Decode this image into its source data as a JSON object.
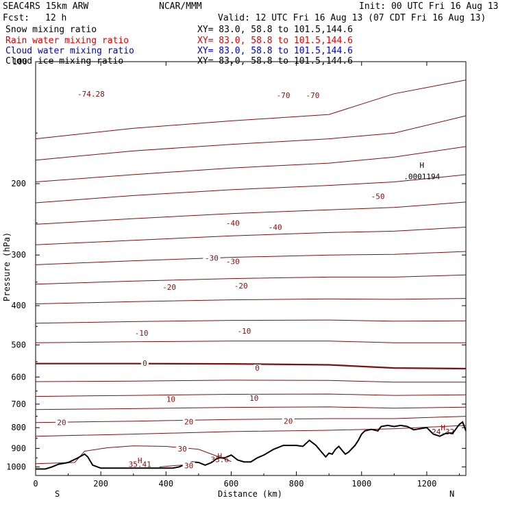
{
  "header": {
    "model": "SEAC4RS 15km ARW",
    "org": "NCAR/MMM",
    "init": "Init: 00 UTC Fri 16 Aug 13",
    "fcst_label": "Fcst:",
    "fcst_value": "12 h",
    "valid": "Valid: 12 UTC Fri 16 Aug 13 (07 CDT Fri 16 Aug 13)"
  },
  "fields": [
    {
      "label": "Snow mixing ratio",
      "xy": "XY=  83.0, 58.8 to 101.5,144.6",
      "color": "#000000"
    },
    {
      "label": "Rain water mixing ratio",
      "xy": "XY=  83.0, 58.8 to 101.5,144.6",
      "color": "#e00000"
    },
    {
      "label": "Cloud water mixing ratio",
      "xy": "XY=  83.0, 58.8 to 101.5,144.6",
      "color": "#0000c8"
    },
    {
      "label": "Cloud ice mixing ratio",
      "xy": "XY=  83.0, 58.8 to 101.5,144.6",
      "color": "#000000"
    }
  ],
  "colors": {
    "isotherm": "#7a1010",
    "terrain": "#000000",
    "axis": "#000000"
  },
  "chart_data": {
    "type": "line",
    "xlabel": "Distance (km)",
    "ylabel": "Pressure (hPa)",
    "xlim": [
      0,
      1320
    ],
    "ylim": [
      1050,
      100
    ],
    "y_scale": "log",
    "x_ticks": [
      0,
      200,
      400,
      600,
      800,
      1000,
      1200
    ],
    "y_ticks": [
      200,
      300,
      400,
      500,
      600,
      700,
      800,
      900,
      1000
    ],
    "y_top_label": "100",
    "end_labels": {
      "left": "S",
      "right": "N"
    },
    "grid": false,
    "isotherm_interval": 5,
    "isotherms": [
      {
        "x": [
          0,
          300,
          600,
          900,
          1100,
          1320
        ],
        "p": [
          155,
          146,
          140,
          135,
          120,
          111
        ]
      },
      {
        "x": [
          0,
          300,
          600,
          900,
          1100,
          1320
        ],
        "p": [
          175,
          166,
          160,
          155,
          150,
          136
        ]
      },
      {
        "x": [
          0,
          300,
          600,
          900,
          1100,
          1320
        ],
        "p": [
          198,
          190,
          183,
          178,
          172,
          162
        ]
      },
      {
        "x": [
          0,
          300,
          600,
          900,
          1100,
          1320
        ],
        "p": [
          223,
          214,
          207,
          202,
          198,
          190
        ]
      },
      {
        "x": [
          0,
          300,
          600,
          900,
          1100,
          1320
        ],
        "p": [
          252,
          244,
          237,
          232,
          229,
          222
        ]
      },
      {
        "x": [
          0,
          300,
          600,
          900,
          1100,
          1320
        ],
        "p": [
          283,
          276,
          269,
          264,
          262,
          256
        ]
      },
      {
        "x": [
          0,
          300,
          600,
          900,
          1100,
          1320
        ],
        "p": [
          317,
          310,
          304,
          300,
          299,
          294
        ]
      },
      {
        "x": [
          0,
          300,
          600,
          900,
          1100,
          1320
        ],
        "p": [
          354,
          348,
          343,
          340,
          340,
          336
        ]
      },
      {
        "x": [
          0,
          300,
          600,
          900,
          1100,
          1320
        ],
        "p": [
          396,
          391,
          387,
          385,
          386,
          384
        ]
      },
      {
        "x": [
          0,
          300,
          600,
          900,
          1100,
          1320
        ],
        "p": [
          442,
          438,
          435,
          434,
          437,
          436
        ]
      },
      {
        "x": [
          0,
          300,
          600,
          900,
          1100,
          1320
        ],
        "p": [
          494,
          491,
          489,
          489,
          494,
          494
        ]
      },
      {
        "x": [
          0,
          300,
          600,
          900,
          1100,
          1320
        ],
        "p": [
          556,
          556,
          557,
          560,
          570,
          572
        ]
      },
      {
        "x": [
          0,
          300,
          600,
          900,
          1100,
          1320
        ],
        "p": [
          616,
          614,
          611,
          612,
          618,
          618
        ]
      },
      {
        "x": [
          0,
          300,
          600,
          900,
          1100,
          1320
        ],
        "p": [
          670,
          666,
          662,
          661,
          666,
          664
        ]
      },
      {
        "x": [
          0,
          300,
          600,
          900,
          1100,
          1320
        ],
        "p": [
          722,
          718,
          713,
          711,
          716,
          712
        ]
      },
      {
        "x": [
          0,
          300,
          600,
          900,
          1100,
          1320
        ],
        "p": [
          777,
          771,
          764,
          760,
          760,
          750
        ]
      },
      {
        "x": [
          0,
          300,
          600,
          900,
          1100,
          1320
        ],
        "p": [
          840,
          830,
          818,
          812,
          805,
          790
        ]
      },
      {
        "x": [
          0,
          120,
          150,
          220,
          300,
          400,
          500,
          600
        ],
        "p": [
          982,
          975,
          915,
          897,
          887,
          890,
          905,
          970
        ]
      },
      {
        "x": [
          380,
          430,
          470
        ],
        "p": [
          1000,
          992,
          988
        ]
      }
    ],
    "isotherm_labels": [
      {
        "text": "-74.28",
        "x": 170,
        "p": 120
      },
      {
        "text": "-70",
        "x": 760,
        "p": 121
      },
      {
        "text": "-70",
        "x": 850,
        "p": 121
      },
      {
        "text": "-50",
        "x": 1050,
        "p": 215
      },
      {
        "text": "-40",
        "x": 605,
        "p": 250
      },
      {
        "text": "-40",
        "x": 735,
        "p": 256
      },
      {
        "text": "-30",
        "x": 540,
        "p": 305
      },
      {
        "text": "-30",
        "x": 605,
        "p": 311
      },
      {
        "text": "-20",
        "x": 410,
        "p": 360
      },
      {
        "text": "-20",
        "x": 630,
        "p": 357
      },
      {
        "text": "-10",
        "x": 325,
        "p": 467
      },
      {
        "text": "-10",
        "x": 640,
        "p": 462
      },
      {
        "text": "0",
        "x": 335,
        "p": 554
      },
      {
        "text": "0",
        "x": 680,
        "p": 570
      },
      {
        "text": "10",
        "x": 415,
        "p": 680
      },
      {
        "text": "10",
        "x": 670,
        "p": 676
      },
      {
        "text": "20",
        "x": 80,
        "p": 777
      },
      {
        "text": "20",
        "x": 470,
        "p": 773
      },
      {
        "text": "20",
        "x": 775,
        "p": 770
      },
      {
        "text": "30",
        "x": 450,
        "p": 902
      },
      {
        "text": "30",
        "x": 470,
        "p": 992
      }
    ],
    "thick_isotherm_index": 11,
    "extrema": [
      {
        "mark": "H",
        "value": ".0001194",
        "x": 1185,
        "p": 192,
        "mark_p": 180,
        "color": "#000000"
      },
      {
        "mark": "H",
        "value": "35.41",
        "x": 320,
        "p": 985,
        "mark_p": 964,
        "color": "#7a1010"
      },
      {
        "mark": "H",
        "value": "33.6",
        "x": 565,
        "p": 958,
        "mark_p": 939,
        "color": "#7a1010"
      },
      {
        "mark": "H",
        "value": "24.32",
        "x": 1250,
        "p": 818,
        "mark_p": 800,
        "color": "#7a1010"
      }
    ],
    "terrain": {
      "x": [
        0,
        30,
        50,
        70,
        100,
        130,
        150,
        160,
        175,
        200,
        250,
        300,
        350,
        400,
        420,
        440,
        460,
        480,
        500,
        520,
        540,
        555,
        565,
        580,
        600,
        620,
        640,
        660,
        680,
        700,
        730,
        760,
        780,
        800,
        820,
        840,
        860,
        870,
        880,
        890,
        900,
        910,
        920,
        930,
        940,
        950,
        960,
        980,
        990,
        1000,
        1010,
        1030,
        1050,
        1060,
        1080,
        1100,
        1120,
        1140,
        1160,
        1180,
        1200,
        1220,
        1240,
        1260,
        1280,
        1300,
        1310,
        1320
      ],
      "p": [
        1012,
        1012,
        1000,
        985,
        975,
        950,
        930,
        945,
        990,
        1007,
        1007,
        1007,
        1007,
        1007,
        1007,
        1000,
        985,
        973,
        975,
        990,
        975,
        955,
        950,
        950,
        935,
        962,
        972,
        972,
        950,
        935,
        905,
        885,
        885,
        885,
        890,
        860,
        885,
        905,
        925,
        945,
        925,
        930,
        905,
        890,
        910,
        930,
        920,
        885,
        860,
        830,
        815,
        808,
        815,
        795,
        790,
        795,
        790,
        795,
        810,
        805,
        800,
        830,
        840,
        825,
        825,
        785,
        775,
        815
      ]
    }
  }
}
